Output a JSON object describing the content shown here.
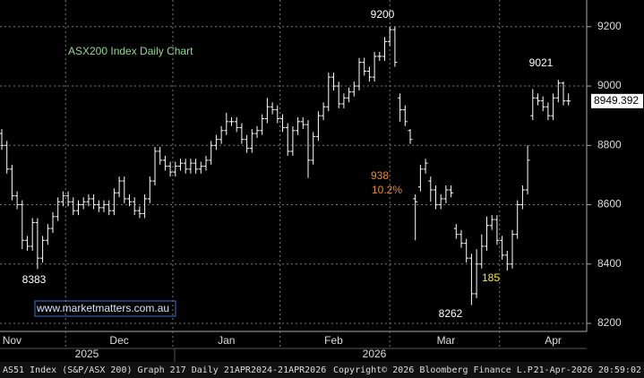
{
  "chart_data": {
    "type": "ohlc",
    "title": "ASX200 Index Daily Chart",
    "color": "#ffffff",
    "categories": [
      null,
      null,
      "Nov",
      null,
      null,
      null,
      null,
      null,
      null,
      null,
      null,
      null,
      null,
      null,
      null,
      null,
      null,
      null,
      null,
      null,
      null,
      null,
      null,
      "Dec",
      null,
      null,
      null,
      null,
      null,
      null,
      null,
      null,
      null,
      null,
      null,
      null,
      null,
      null,
      null,
      null,
      null,
      null,
      null,
      null,
      "Jan",
      null,
      null,
      null,
      null,
      null,
      null,
      null,
      null,
      null,
      null,
      null,
      null,
      null,
      null,
      null,
      null,
      null,
      null,
      null,
      null,
      "Feb",
      null,
      null,
      null,
      null,
      null,
      null,
      null,
      null,
      null,
      null,
      null,
      null,
      null,
      null,
      null,
      null,
      null,
      null,
      null,
      null,
      null,
      "Mar",
      null,
      null,
      null,
      null,
      null,
      null,
      null,
      null,
      null,
      null,
      null,
      null,
      null,
      null,
      null,
      null,
      null,
      null,
      null,
      null,
      "Apr",
      null,
      null,
      null
    ],
    "open": [
      8840,
      8800,
      8720,
      8630,
      8600,
      8480,
      8460,
      8540,
      8420,
      8480,
      8520,
      8560,
      8610,
      8630,
      8610,
      8580,
      8600,
      8610,
      8620,
      8600,
      8590,
      8600,
      8580,
      8640,
      8680,
      8620,
      8610,
      8580,
      8570,
      8620,
      8680,
      8780,
      8750,
      8730,
      8710,
      8730,
      8740,
      8720,
      8740,
      8720,
      8730,
      8750,
      8800,
      8820,
      8850,
      8880,
      8880,
      8860,
      8820,
      8790,
      8840,
      8850,
      8890,
      8930,
      8920,
      8890,
      8860,
      8780,
      8850,
      8880,
      8870,
      8750,
      8830,
      8900,
      8930,
      9030,
      9000,
      8940,
      8960,
      8980,
      9000,
      9080,
      9050,
      9030,
      9100,
      9100,
      9150,
      9190,
      8960,
      8920,
      8850,
      8620,
      8660,
      8720,
      8680,
      8650,
      8600,
      8620,
      8650,
      8520,
      8500,
      8470,
      8420,
      8300,
      8400,
      8460,
      8530,
      8550,
      8480,
      8430,
      8400,
      8500,
      8600,
      8650,
      8900,
      8960,
      8950,
      8930,
      8900,
      8960,
      9010,
      8950
    ],
    "high": [
      8855,
      8815,
      8735,
      8645,
      8615,
      8495,
      8555,
      8555,
      8495,
      8535,
      8575,
      8625,
      8645,
      8645,
      8625,
      8615,
      8625,
      8635,
      8635,
      8615,
      8615,
      8615,
      8655,
      8695,
      8695,
      8635,
      8625,
      8595,
      8635,
      8695,
      8795,
      8795,
      8765,
      8745,
      8745,
      8755,
      8755,
      8755,
      8755,
      8745,
      8765,
      8815,
      8835,
      8865,
      8910,
      8895,
      8895,
      8875,
      8835,
      8855,
      8865,
      8905,
      8960,
      8945,
      8935,
      8905,
      8875,
      8865,
      8895,
      8895,
      8885,
      8845,
      8915,
      8945,
      9045,
      9045,
      9015,
      8975,
      8995,
      9015,
      9095,
      9095,
      9065,
      9115,
      9115,
      9165,
      9200,
      9200,
      8975,
      8935,
      8855,
      8635,
      8735,
      8755,
      8695,
      8665,
      8635,
      8665,
      8665,
      8535,
      8515,
      8485,
      8435,
      8450,
      8500,
      8560,
      8565,
      8565,
      8495,
      8445,
      8515,
      8615,
      8665,
      8800,
      8990,
      8975,
      8965,
      8945,
      8975,
      9021,
      9015,
      8975
    ],
    "low": [
      8785,
      8705,
      8615,
      8585,
      8450,
      8445,
      8445,
      8383,
      8405,
      8465,
      8505,
      8545,
      8595,
      8595,
      8565,
      8565,
      8585,
      8595,
      8585,
      8575,
      8575,
      8565,
      8565,
      8625,
      8605,
      8595,
      8565,
      8555,
      8555,
      8605,
      8665,
      8735,
      8715,
      8695,
      8695,
      8715,
      8705,
      8705,
      8705,
      8705,
      8715,
      8735,
      8785,
      8805,
      8835,
      8865,
      8845,
      8805,
      8775,
      8775,
      8825,
      8835,
      8875,
      8905,
      8875,
      8845,
      8765,
      8765,
      8835,
      8855,
      8690,
      8735,
      8815,
      8885,
      8915,
      8985,
      8925,
      8925,
      8945,
      8965,
      8985,
      9035,
      9015,
      9015,
      9085,
      9085,
      9135,
      9065,
      8880,
      8865,
      8805,
      8480,
      8645,
      8705,
      8610,
      8585,
      8585,
      8605,
      8625,
      8485,
      8455,
      8405,
      8262,
      8285,
      8385,
      8445,
      8515,
      8465,
      8415,
      8378,
      8385,
      8485,
      8585,
      8635,
      8885,
      8935,
      8915,
      8885,
      8885,
      8945,
      8935,
      8935
    ],
    "close": [
      8800,
      8720,
      8630,
      8600,
      8480,
      8460,
      8540,
      8420,
      8480,
      8520,
      8560,
      8610,
      8630,
      8610,
      8580,
      8600,
      8610,
      8620,
      8600,
      8590,
      8600,
      8580,
      8640,
      8680,
      8620,
      8610,
      8580,
      8570,
      8620,
      8680,
      8780,
      8750,
      8730,
      8710,
      8730,
      8740,
      8720,
      8740,
      8720,
      8730,
      8750,
      8800,
      8820,
      8850,
      8880,
      8880,
      8860,
      8820,
      8790,
      8840,
      8850,
      8890,
      8930,
      8920,
      8890,
      8860,
      8780,
      8850,
      8880,
      8870,
      8750,
      8830,
      8900,
      8930,
      9030,
      9000,
      8940,
      8960,
      8980,
      9000,
      9080,
      9050,
      9030,
      9100,
      9100,
      9150,
      9190,
      9080,
      8920,
      8880,
      8820,
      8610,
      8720,
      8740,
      8650,
      8600,
      8620,
      8650,
      8640,
      8500,
      8470,
      8420,
      8300,
      8400,
      8460,
      8530,
      8550,
      8480,
      8430,
      8400,
      8500,
      8600,
      8650,
      8750,
      8960,
      8950,
      8930,
      8900,
      8960,
      9010,
      8950,
      8949.392
    ],
    "ylim": [
      8173,
      9290
    ],
    "yticks": [
      8200,
      8400,
      8600,
      8800,
      9000,
      9200
    ],
    "grid": true,
    "last_price": 8949.392,
    "years": [
      "2025",
      "2026"
    ],
    "annotations": [
      {
        "text": 9200,
        "color": "#ffffff"
      },
      {
        "text": 9021,
        "color": "#ffffff"
      },
      {
        "text": 8383,
        "color": "#ffffff"
      },
      {
        "text": 8262,
        "color": "#ffffff"
      },
      {
        "text": 938,
        "color": "#f08a24"
      },
      {
        "text": "10.2%",
        "color": "#f08a24"
      },
      {
        "text": 185,
        "color": "#f5e61e"
      }
    ],
    "watermark": "www.marketmatters.com.au",
    "footer": {
      "left": "AS51 Index (S&P/ASX 200) Graph 217 Daily 21APR2024-21APR2026",
      "center": "Copyright© 2026 Bloomberg Finance L.P.",
      "right": "21-Apr-2026 20:59:02"
    }
  }
}
